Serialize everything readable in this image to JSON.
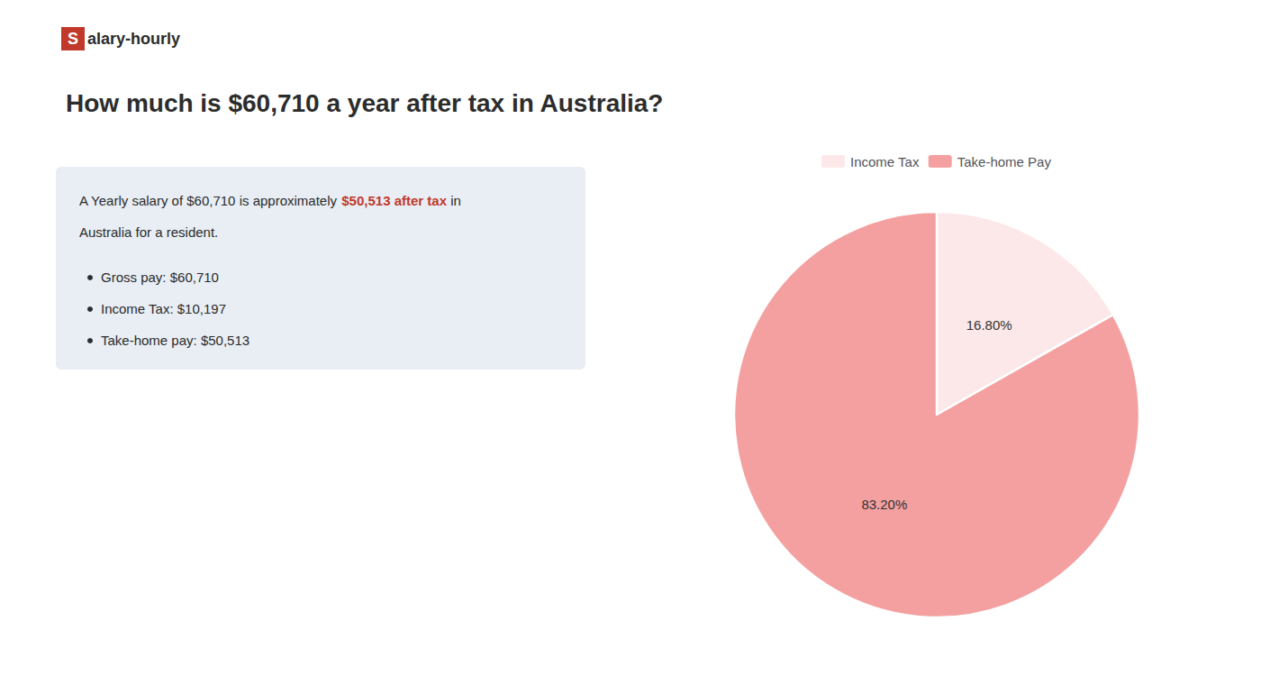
{
  "chart_data": {
    "type": "pie",
    "title": "How much is $60,710 a year after tax in Australia?",
    "categories": [
      "Income Tax",
      "Take-home Pay"
    ],
    "values": [
      16.8,
      83.2
    ],
    "value_labels": [
      "16.80%",
      "83.20%"
    ],
    "colors": [
      "#fce8e8",
      "#f4a0a0"
    ],
    "legend": "top",
    "data_labels": true,
    "annotations": [
      {
        "text": "S",
        "color": "#c0392b"
      },
      {
        "text": "alary-hourly"
      },
      {
        "text": "A Yearly salary of $60,710 is approximately "
      },
      {
        "text": "$50,513 after tax",
        "color": "#c0392b"
      },
      {
        "text": " in"
      },
      {
        "text": "Australia for a resident."
      },
      {
        "text": "Gross pay: $60,710"
      },
      {
        "text": "Income Tax: $10,197"
      },
      {
        "text": "Take-home pay: $50,513"
      }
    ]
  }
}
